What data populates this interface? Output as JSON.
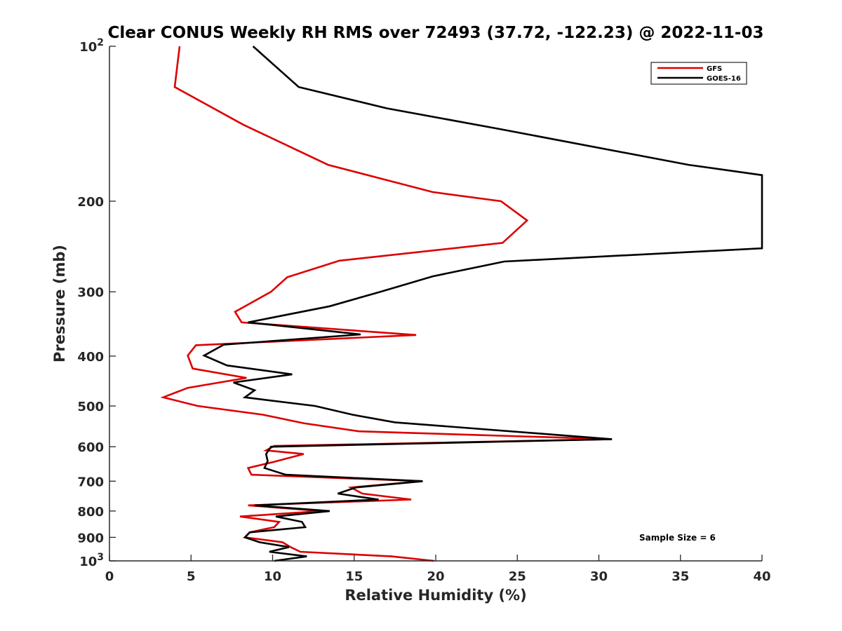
{
  "chart_data": {
    "type": "line",
    "title": "Clear CONUS Weekly RH RMS over 72493 (37.72, -122.23) @ 2022-11-03",
    "xlabel": "Relative Humidity (%)",
    "ylabel": "Pressure (mb)",
    "xlim": [
      0,
      40
    ],
    "ylim": [
      100,
      1000
    ],
    "yscale": "log",
    "y_reversed": true,
    "grid": false,
    "xticks": [
      0,
      5,
      10,
      15,
      20,
      25,
      30,
      35,
      40
    ],
    "xtick_labels": [
      "0",
      "5",
      "10",
      "15",
      "20",
      "25",
      "30",
      "35",
      "40"
    ],
    "yticks": [
      100,
      200,
      300,
      400,
      500,
      600,
      700,
      800,
      900,
      1000
    ],
    "ytick_labels": [
      {
        "base": "10",
        "exp": "2"
      },
      {
        "base": "200",
        "exp": ""
      },
      {
        "base": "300",
        "exp": ""
      },
      {
        "base": "400",
        "exp": ""
      },
      {
        "base": "500",
        "exp": ""
      },
      {
        "base": "600",
        "exp": ""
      },
      {
        "base": "700",
        "exp": ""
      },
      {
        "base": "800",
        "exp": ""
      },
      {
        "base": "900",
        "exp": ""
      },
      {
        "base": "10",
        "exp": "3"
      }
    ],
    "legend_position": "top-right",
    "annotation": "Sample Size = 6",
    "series": [
      {
        "name": "GFS",
        "color": "#dd0000",
        "points": [
          [
            4.3,
            100
          ],
          [
            4.0,
            120
          ],
          [
            8.2,
            142
          ],
          [
            13.4,
            170
          ],
          [
            19.8,
            192
          ],
          [
            24.0,
            200
          ],
          [
            25.6,
            218
          ],
          [
            24.1,
            241
          ],
          [
            14.1,
            261
          ],
          [
            10.9,
            281
          ],
          [
            9.9,
            300
          ],
          [
            7.7,
            328
          ],
          [
            8.1,
            344
          ],
          [
            18.8,
            364
          ],
          [
            5.3,
            381
          ],
          [
            4.8,
            399
          ],
          [
            5.1,
            423
          ],
          [
            8.4,
            441
          ],
          [
            4.8,
            461
          ],
          [
            3.3,
            481
          ],
          [
            5.4,
            500
          ],
          [
            9.4,
            520
          ],
          [
            11.9,
            540
          ],
          [
            15.3,
            560
          ],
          [
            30.8,
            580
          ],
          [
            10.1,
            598
          ],
          [
            9.6,
            610
          ],
          [
            11.9,
            620
          ],
          [
            10.0,
            643
          ],
          [
            8.5,
            660
          ],
          [
            8.7,
            680
          ],
          [
            19.2,
            700
          ],
          [
            14.8,
            720
          ],
          [
            15.5,
            740
          ],
          [
            18.5,
            760
          ],
          [
            8.5,
            780
          ],
          [
            13.0,
            800
          ],
          [
            8.0,
            820
          ],
          [
            10.4,
            840
          ],
          [
            10.1,
            860
          ],
          [
            8.6,
            880
          ],
          [
            8.3,
            900
          ],
          [
            10.6,
            920
          ],
          [
            11.1,
            940
          ],
          [
            11.7,
            960
          ],
          [
            17.3,
            980
          ],
          [
            19.9,
            1000
          ]
        ]
      },
      {
        "name": "GOES-16",
        "color": "#000000",
        "points": [
          [
            8.8,
            100
          ],
          [
            11.6,
            120
          ],
          [
            17.0,
            132
          ],
          [
            24.0,
            145
          ],
          [
            35.5,
            170
          ],
          [
            40.0,
            178
          ],
          [
            40.0,
            247
          ],
          [
            24.2,
            262
          ],
          [
            19.8,
            280
          ],
          [
            16.6,
            300
          ],
          [
            13.5,
            320
          ],
          [
            8.5,
            344
          ],
          [
            15.4,
            363
          ],
          [
            7.0,
            380
          ],
          [
            5.8,
            399
          ],
          [
            7.2,
            417
          ],
          [
            11.2,
            434
          ],
          [
            7.6,
            450
          ],
          [
            8.9,
            466
          ],
          [
            8.3,
            481
          ],
          [
            12.6,
            500
          ],
          [
            14.9,
            520
          ],
          [
            17.5,
            538
          ],
          [
            30.8,
            580
          ],
          [
            9.9,
            600
          ],
          [
            9.6,
            620
          ],
          [
            9.7,
            640
          ],
          [
            9.5,
            660
          ],
          [
            10.8,
            680
          ],
          [
            19.2,
            700
          ],
          [
            15.1,
            720
          ],
          [
            14.0,
            740
          ],
          [
            16.5,
            760
          ],
          [
            8.9,
            780
          ],
          [
            13.5,
            800
          ],
          [
            10.2,
            820
          ],
          [
            11.8,
            840
          ],
          [
            12.0,
            860
          ],
          [
            8.6,
            880
          ],
          [
            8.3,
            900
          ],
          [
            9.2,
            920
          ],
          [
            11.0,
            940
          ],
          [
            9.8,
            960
          ],
          [
            12.1,
            980
          ],
          [
            10.1,
            1000
          ]
        ]
      }
    ]
  }
}
